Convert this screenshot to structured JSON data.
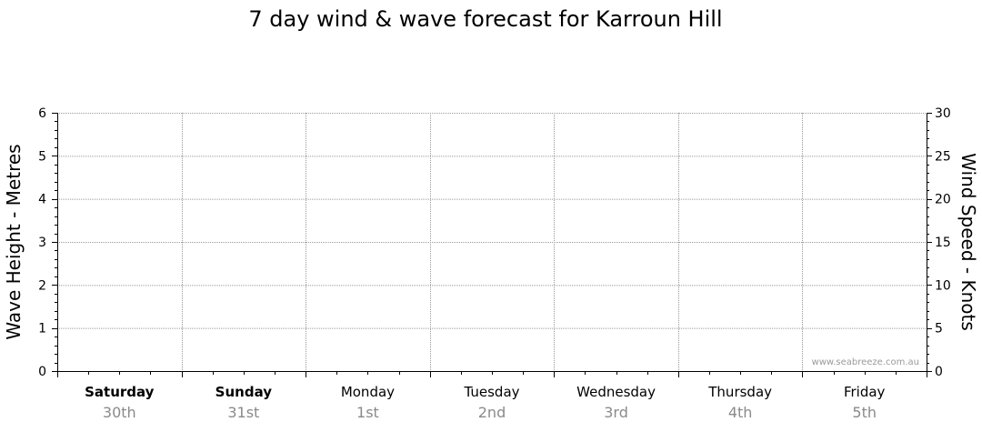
{
  "chart_data": {
    "type": "line",
    "title": "7 day wind & wave forecast for Karroun Hill",
    "ylabel_left": "Wave Height - Metres",
    "ylabel_right": "Wind Speed - Knots",
    "ylim_left": [
      0,
      6
    ],
    "ylim_right": [
      0,
      30
    ],
    "yticks_left": [
      "0",
      "1",
      "2",
      "3",
      "4",
      "5",
      "6"
    ],
    "yticks_right": [
      "0",
      "5",
      "10",
      "15",
      "20",
      "25",
      "30"
    ],
    "grid": true,
    "days": [
      {
        "day": "Saturday",
        "date": "30th",
        "bold": true
      },
      {
        "day": "Sunday",
        "date": "31st",
        "bold": true
      },
      {
        "day": "Monday",
        "date": "1st",
        "bold": false
      },
      {
        "day": "Tuesday",
        "date": "2nd",
        "bold": false
      },
      {
        "day": "Wednesday",
        "date": "3rd",
        "bold": false
      },
      {
        "day": "Thursday",
        "date": "4th",
        "bold": false
      },
      {
        "day": "Friday",
        "date": "5th",
        "bold": false
      }
    ],
    "series": [],
    "watermark": "www.seabreeze.com.au"
  }
}
